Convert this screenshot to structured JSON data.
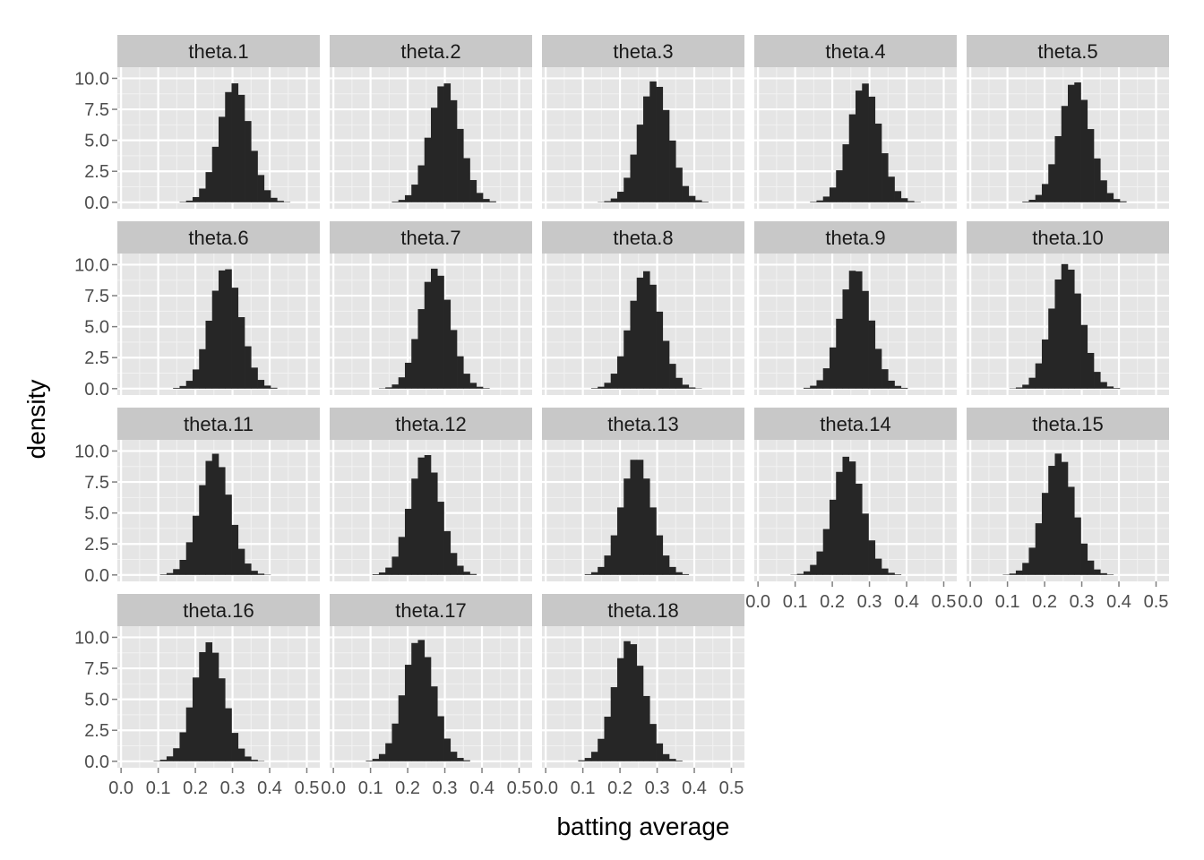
{
  "chart_data": {
    "type": "bar",
    "subtype": "faceted-histogram",
    "xlabel": "batting average",
    "ylabel": "density",
    "xlim": [
      -0.01,
      0.535
    ],
    "ylim": [
      -0.52,
      10.9
    ],
    "x_ticks": [
      0.0,
      0.1,
      0.2,
      0.3,
      0.4,
      0.5
    ],
    "x_tick_labels": [
      "0.0",
      "0.1",
      "0.2",
      "0.3",
      "0.4",
      "0.5"
    ],
    "y_ticks": [
      0.0,
      2.5,
      5.0,
      7.5,
      10.0
    ],
    "y_tick_labels": [
      "0.0",
      "2.5",
      "5.0",
      "7.5",
      "10.0"
    ],
    "bin_width": 0.0175,
    "grid": true,
    "facet_layout": {
      "ncol": 5,
      "nrow": 4
    },
    "colors": {
      "panel_background": "#e5e5e5",
      "grid_major": "#ffffff",
      "grid_minor": "#f2f2f2",
      "strip_background": "#c8c8c8",
      "bar_fill": "#262626"
    },
    "facets": [
      {
        "label": "theta.1",
        "center": 0.305,
        "peak": 9.6
      },
      {
        "label": "theta.2",
        "center": 0.3,
        "peak": 9.7
      },
      {
        "label": "theta.3",
        "center": 0.293,
        "peak": 9.8
      },
      {
        "label": "theta.4",
        "center": 0.286,
        "peak": 9.6
      },
      {
        "label": "theta.5",
        "center": 0.282,
        "peak": 9.8
      },
      {
        "label": "theta.6",
        "center": 0.281,
        "peak": 9.8
      },
      {
        "label": "theta.7",
        "center": 0.274,
        "peak": 9.7
      },
      {
        "label": "theta.8",
        "center": 0.268,
        "peak": 9.5
      },
      {
        "label": "theta.9",
        "center": 0.262,
        "peak": 9.7
      },
      {
        "label": "theta.10",
        "center": 0.258,
        "peak": 10.1
      },
      {
        "label": "theta.11",
        "center": 0.251,
        "peak": 9.8
      },
      {
        "label": "theta.12",
        "center": 0.247,
        "peak": 9.8
      },
      {
        "label": "theta.13",
        "center": 0.245,
        "peak": 9.5
      },
      {
        "label": "theta.14",
        "center": 0.241,
        "peak": 9.6
      },
      {
        "label": "theta.15",
        "center": 0.238,
        "peak": 9.8
      },
      {
        "label": "theta.16",
        "center": 0.236,
        "peak": 9.6
      },
      {
        "label": "theta.17",
        "center": 0.23,
        "peak": 9.9
      },
      {
        "label": "theta.18",
        "center": 0.225,
        "peak": 9.8
      }
    ]
  }
}
